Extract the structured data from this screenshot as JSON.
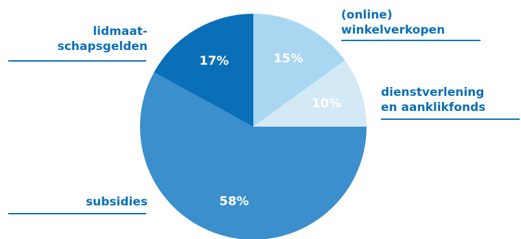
{
  "chart_data": {
    "type": "pie",
    "categories": [
      "subsidies",
      "lidmaatschapsgelden",
      "(online) winkelverkopen",
      "dienstverlening en aanklikfonds"
    ],
    "values": [
      58,
      17,
      15,
      10
    ],
    "slices": [
      {
        "name": "subsidies",
        "value": 58,
        "percent_label": "58%",
        "label_lines": [
          "subsidies"
        ],
        "color": "#3a8fcc",
        "percent_color": "#ffffff"
      },
      {
        "name": "lidmaatschapsgelden",
        "value": 17,
        "percent_label": "17%",
        "label_lines": [
          "lidmaat-",
          "schapsgelden"
        ],
        "color": "#0a6fb9",
        "percent_color": "#ffffff"
      },
      {
        "name": "(online) winkelverkopen",
        "value": 15,
        "percent_label": "15%",
        "label_lines": [
          "(online)",
          "winkelverkopen"
        ],
        "color": "#a9d7f2",
        "percent_color": "#0a6fb9"
      },
      {
        "name": "dienstverlening en aanklikfonds",
        "value": 10,
        "percent_label": "10%",
        "label_lines": [
          "dienstverlening",
          "en aanklikfonds"
        ],
        "color": "#d3e9f6",
        "percent_color": "#0a6fb9"
      }
    ],
    "label_color": "#0a6fb9",
    "rule_color": "#0a6fb9"
  }
}
